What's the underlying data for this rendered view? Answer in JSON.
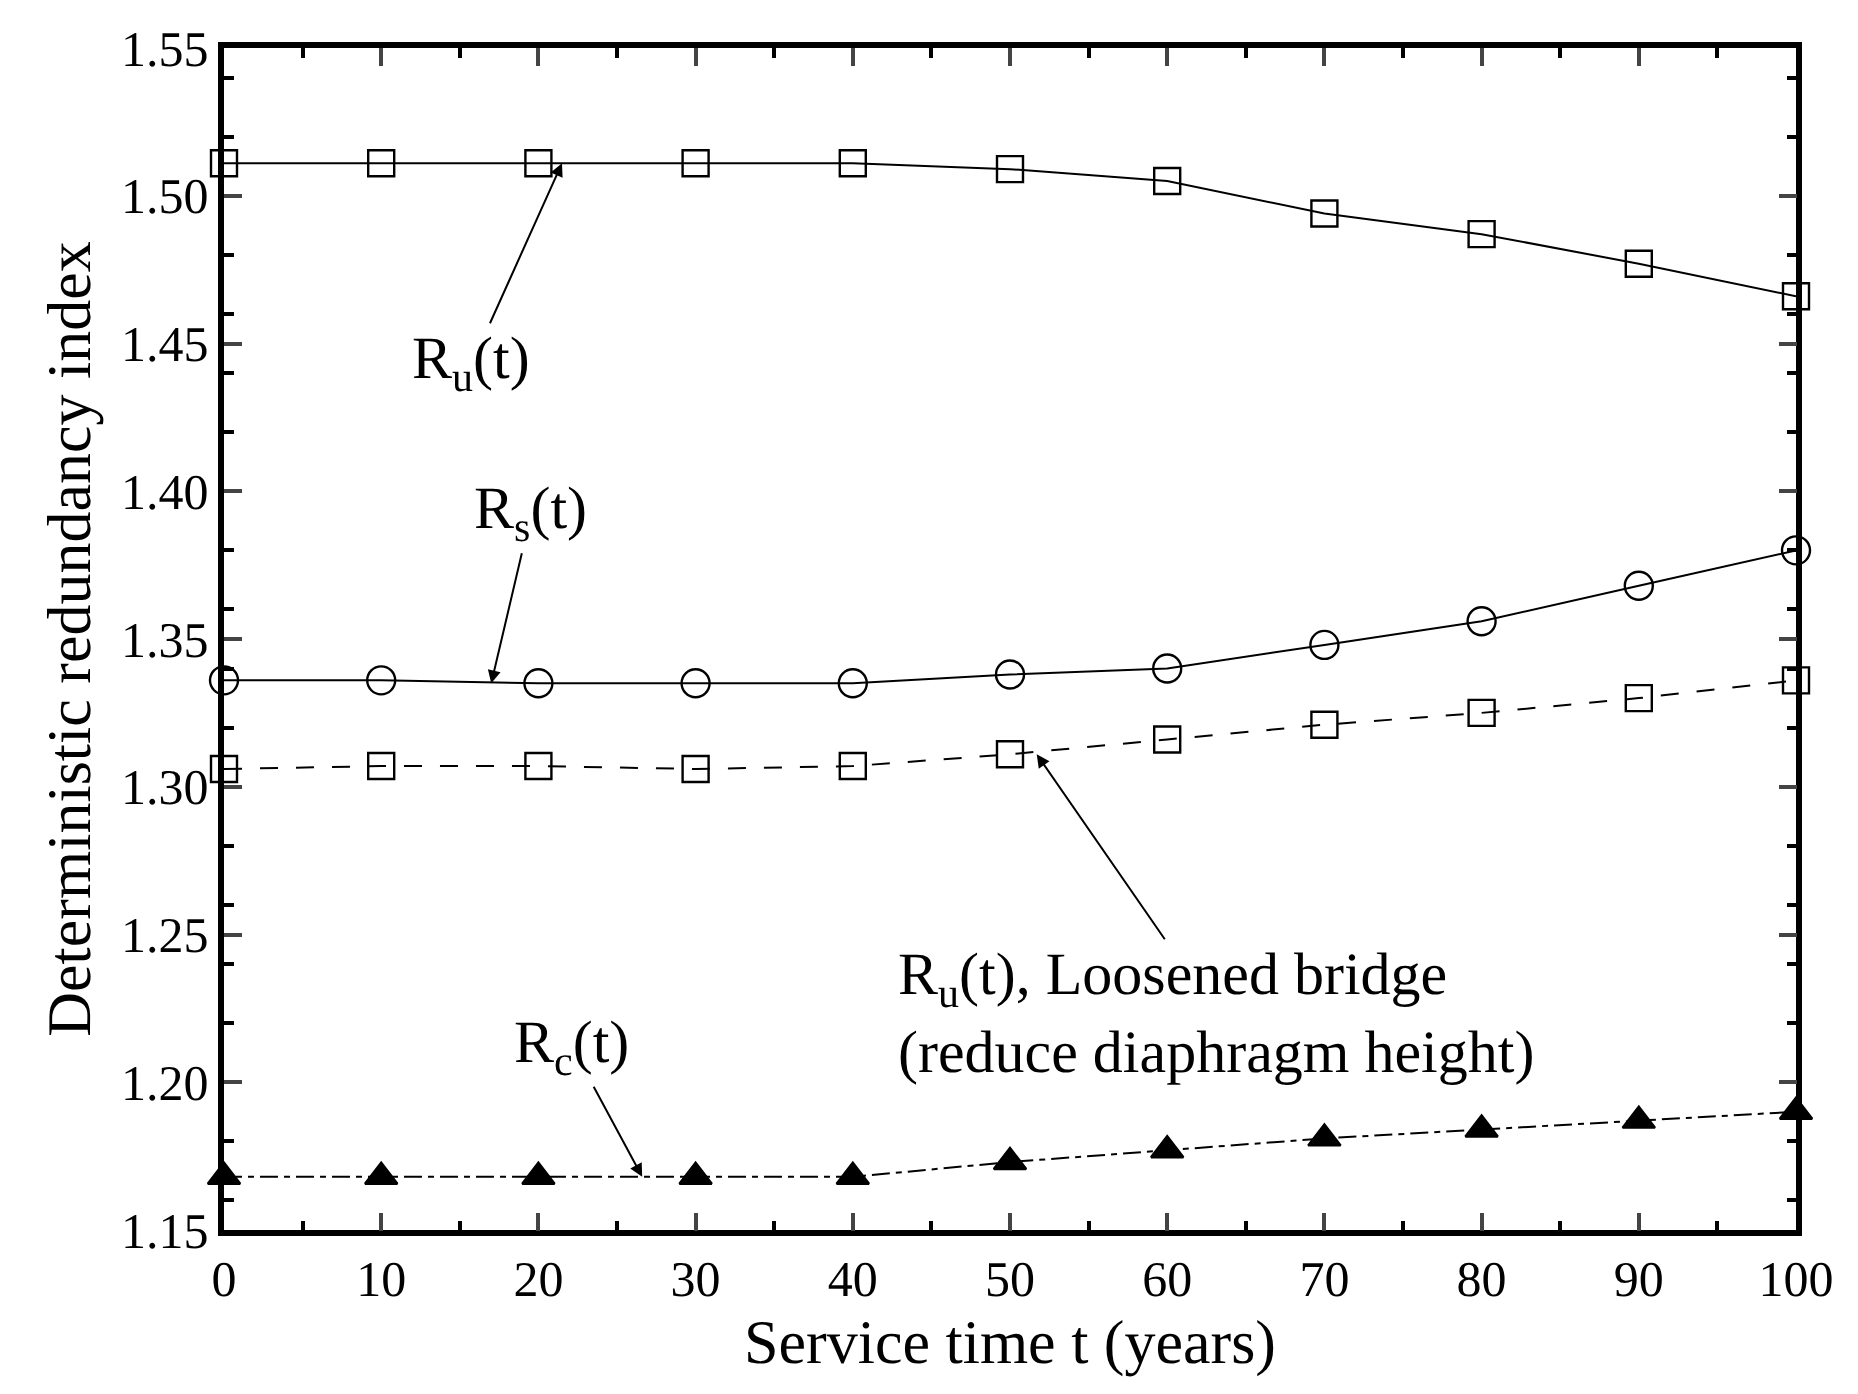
{
  "chart_data": {
    "type": "line",
    "xlabel": "Service time t (years)",
    "ylabel": "Deterministic redundancy index",
    "x": [
      0,
      10,
      20,
      30,
      40,
      50,
      60,
      70,
      80,
      90,
      100
    ],
    "series": [
      {
        "color": "#000000",
        "marker": "square",
        "line_style": "solid",
        "values": [
          1.511,
          1.511,
          1.511,
          1.511,
          1.511,
          1.509,
          1.505,
          1.494,
          1.487,
          1.477,
          1.466
        ]
      },
      {
        "color": "#000000",
        "marker": "circle",
        "line_style": "solid",
        "values": [
          1.336,
          1.336,
          1.335,
          1.335,
          1.335,
          1.338,
          1.34,
          1.348,
          1.356,
          1.368,
          1.38
        ]
      },
      {
        "color": "#000000",
        "marker": "square",
        "line_style": "dashed",
        "values": [
          1.306,
          1.307,
          1.307,
          1.306,
          1.307,
          1.311,
          1.316,
          1.321,
          1.325,
          1.33,
          1.336
        ]
      },
      {
        "color": "#000000",
        "marker": "triangle",
        "line_style": "dashdot",
        "values": [
          1.168,
          1.168,
          1.168,
          1.168,
          1.168,
          1.173,
          1.177,
          1.181,
          1.184,
          1.187,
          1.19
        ]
      }
    ],
    "annotations": [
      {
        "text": "R$_{u}$(t)",
        "x": 21.5,
        "y": 1.511
      },
      {
        "text": "R$_{s}$(t)",
        "x": 17,
        "y": 1.335
      },
      {
        "text": "R$_{u}$(t), Loosened bridge\n(reduce diaphragm height)",
        "x": 51.7,
        "y": 1.311
      },
      {
        "text": "R$_{c}$(t)",
        "x": 26.6,
        "y": 1.168
      }
    ],
    "xlim": [
      0,
      100
    ],
    "xticks": [
      0,
      10,
      20,
      30,
      40,
      50,
      60,
      70,
      80,
      90,
      100
    ],
    "ylim": [
      1.15,
      1.55
    ],
    "yticks": [
      1.15,
      {
        "value": 1.2,
        "label": "1.20"
      },
      1.25,
      {
        "value": 1.3,
        "label": "1.30"
      },
      1.35,
      {
        "value": 1.4,
        "label": "1.40"
      },
      1.45,
      {
        "value": 1.5,
        "label": "1.50"
      },
      1.55
    ]
  }
}
